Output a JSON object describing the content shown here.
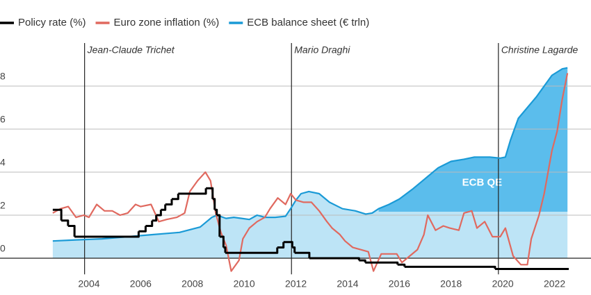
{
  "chart_data": {
    "type": "line",
    "xlim": [
      2000.56,
      2023.41
    ],
    "xticks": [
      2004,
      2006,
      2008,
      2010,
      2012,
      2014,
      2016,
      2018,
      2020,
      2022
    ],
    "ylim": [
      -1,
      10
    ],
    "yticks": [
      0,
      2,
      4,
      6,
      8
    ],
    "grid": true,
    "events": [
      {
        "x": 2003.83,
        "label": "Jean-Claude Trichet"
      },
      {
        "x": 2011.83,
        "label": "Mario Draghi"
      },
      {
        "x": 2019.83,
        "label": "Christine Lagarde"
      }
    ],
    "qe_area": {
      "label": "ECB QE",
      "x_start": 2015.2,
      "baseline": 2.16,
      "color": "#5bbdec"
    },
    "series": [
      {
        "name": "Policy rate (%)",
        "color": "#000000",
        "drawstyle": "steps-post",
        "x": [
          2002.6,
          2002.93,
          2003.19,
          2003.44,
          2005.92,
          2006.19,
          2006.44,
          2006.6,
          2006.78,
          2006.95,
          2007.2,
          2007.45,
          2008.52,
          2008.78,
          2008.86,
          2008.94,
          2009.05,
          2009.2,
          2009.27,
          2011.28,
          2011.52,
          2011.86,
          2011.95,
          2012.52,
          2014.44,
          2014.68,
          2015.93,
          2016.2,
          2019.7,
          2022.55
        ],
        "values": [
          2.25,
          1.75,
          1.5,
          1.0,
          1.25,
          1.5,
          1.75,
          2.0,
          2.25,
          2.5,
          2.75,
          3.0,
          3.25,
          2.75,
          2.25,
          2.0,
          1.0,
          0.5,
          0.25,
          0.5,
          0.75,
          0.5,
          0.25,
          0.0,
          -0.1,
          -0.2,
          -0.3,
          -0.4,
          -0.5,
          -0.5
        ]
      },
      {
        "name": "Euro zone inflation (%)",
        "color": "#e0695f",
        "x": [
          2002.6,
          2002.9,
          2003.2,
          2003.5,
          2003.8,
          2004.0,
          2004.3,
          2004.6,
          2004.9,
          2005.2,
          2005.5,
          2005.8,
          2006.0,
          2006.4,
          2006.7,
          2007.0,
          2007.4,
          2007.7,
          2007.9,
          2008.2,
          2008.5,
          2008.7,
          2008.9,
          2009.1,
          2009.3,
          2009.5,
          2009.8,
          2009.95,
          2010.2,
          2010.5,
          2010.8,
          2011.0,
          2011.3,
          2011.6,
          2011.8,
          2012.0,
          2012.3,
          2012.6,
          2012.9,
          2013.2,
          2013.4,
          2013.7,
          2013.9,
          2014.2,
          2014.5,
          2014.8,
          2015.0,
          2015.3,
          2015.6,
          2015.9,
          2016.1,
          2016.4,
          2016.7,
          2016.95,
          2017.1,
          2017.4,
          2017.7,
          2017.95,
          2018.3,
          2018.5,
          2018.8,
          2019.0,
          2019.3,
          2019.6,
          2019.9,
          2020.1,
          2020.4,
          2020.7,
          2020.95,
          2021.1,
          2021.4,
          2021.6,
          2021.9,
          2022.1,
          2022.3,
          2022.5
        ],
        "values": [
          2.1,
          2.3,
          2.4,
          1.9,
          2.0,
          1.9,
          2.5,
          2.2,
          2.2,
          2.0,
          2.1,
          2.5,
          2.4,
          2.5,
          1.7,
          1.8,
          1.9,
          2.1,
          3.1,
          3.6,
          4.0,
          3.6,
          2.1,
          1.2,
          0.6,
          -0.6,
          -0.1,
          0.9,
          1.4,
          1.7,
          1.9,
          2.3,
          2.8,
          2.5,
          3.0,
          2.7,
          2.6,
          2.6,
          2.2,
          1.7,
          1.4,
          1.1,
          0.8,
          0.5,
          0.4,
          0.3,
          -0.6,
          0.2,
          0.2,
          0.2,
          -0.2,
          0.1,
          0.4,
          1.1,
          2.0,
          1.3,
          1.5,
          1.4,
          1.3,
          2.1,
          2.2,
          1.4,
          1.7,
          1.0,
          1.0,
          1.4,
          0.1,
          -0.3,
          -0.3,
          0.9,
          2.0,
          3.0,
          5.0,
          5.9,
          7.4,
          8.6
        ]
      },
      {
        "name": "ECB balance sheet (€ trln)",
        "color": "#1a9ad6",
        "fill": "#bde4f6",
        "x": [
          2002.6,
          2003.5,
          2004.5,
          2005.5,
          2006.5,
          2007.5,
          2008.3,
          2008.75,
          2008.95,
          2009.3,
          2009.6,
          2009.9,
          2010.2,
          2010.5,
          2010.8,
          2011.2,
          2011.6,
          2011.85,
          2012.0,
          2012.2,
          2012.5,
          2012.9,
          2013.3,
          2013.8,
          2014.3,
          2014.7,
          2014.95,
          2015.2,
          2015.6,
          2016.0,
          2016.5,
          2017.0,
          2017.5,
          2018.0,
          2018.5,
          2018.9,
          2019.5,
          2019.9,
          2020.1,
          2020.3,
          2020.6,
          2020.95,
          2021.3,
          2021.6,
          2021.9,
          2022.3,
          2022.5
        ],
        "values": [
          0.8,
          0.85,
          0.9,
          1.0,
          1.1,
          1.2,
          1.45,
          1.9,
          2.0,
          1.85,
          1.9,
          1.85,
          1.8,
          2.0,
          1.9,
          1.9,
          1.95,
          2.4,
          2.7,
          3.0,
          3.1,
          3.0,
          2.6,
          2.3,
          2.2,
          2.05,
          2.1,
          2.3,
          2.5,
          2.75,
          3.2,
          3.7,
          4.2,
          4.5,
          4.6,
          4.7,
          4.7,
          4.65,
          4.7,
          5.5,
          6.5,
          7.0,
          7.5,
          8.0,
          8.5,
          8.8,
          8.85
        ]
      }
    ]
  }
}
